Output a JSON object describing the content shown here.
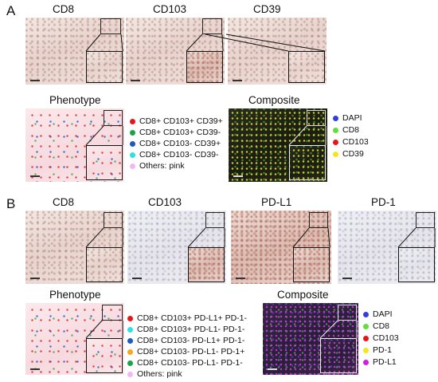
{
  "panels": [
    {
      "letter": "A",
      "markers": [
        "CD8",
        "CD103",
        "CD39"
      ],
      "phenotype_title": "Phenotype",
      "phenotype_legend": [
        {
          "label": "CD8+ CD103+ CD39+",
          "color": "#e8141c"
        },
        {
          "label": "CD8+ CD103+ CD39-",
          "color": "#1aa34a"
        },
        {
          "label": "CD8+ CD103- CD39+",
          "color": "#1f5bbf"
        },
        {
          "label": "CD8+ CD103- CD39-",
          "color": "#2fe0e0"
        },
        {
          "label": "Others: pink",
          "color": "#f2b8f0"
        }
      ],
      "composite_title": "Composite",
      "composite_legend": [
        {
          "label": "DAPI",
          "color": "#3340d8"
        },
        {
          "label": "CD8",
          "color": "#5fe03c"
        },
        {
          "label": "CD103",
          "color": "#e8141c"
        },
        {
          "label": "CD39",
          "color": "#f5e51a"
        }
      ]
    },
    {
      "letter": "B",
      "markers": [
        "CD8",
        "CD103",
        "PD-L1",
        "PD-1"
      ],
      "phenotype_title": "Phenotype",
      "phenotype_legend": [
        {
          "label": "CD8+ CD103+ PD-L1+ PD-1-",
          "color": "#e8141c"
        },
        {
          "label": "CD8+ CD103+ PD-L1- PD-1-",
          "color": "#2fe0e0"
        },
        {
          "label": "CD8+ CD103- PD-L1+ PD-1-",
          "color": "#1f5bbf"
        },
        {
          "label": "CD8+ CD103- PD-L1- PD-1+",
          "color": "#f5a81a"
        },
        {
          "label": "CD8+ CD103- PD-L1- PD-1-",
          "color": "#1aa34a"
        },
        {
          "label": "Others: pink",
          "color": "#f2b8f0"
        }
      ],
      "composite_title": "Composite",
      "composite_legend": [
        {
          "label": "DAPI",
          "color": "#3340d8"
        },
        {
          "label": "CD8",
          "color": "#5fe03c"
        },
        {
          "label": "CD103",
          "color": "#e8141c"
        },
        {
          "label": "PD-1",
          "color": "#f5e51a"
        },
        {
          "label": "PD-L1",
          "color": "#d21ee0"
        }
      ]
    }
  ]
}
